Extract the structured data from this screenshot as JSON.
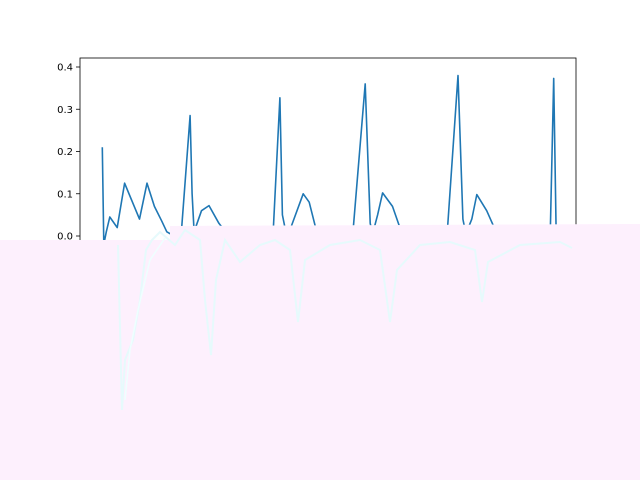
{
  "chart_data": {
    "type": "line",
    "title": "",
    "xlabel": "",
    "ylabel": "",
    "ylim": [
      -0.05,
      0.42
    ],
    "grid": false,
    "legend": "none",
    "y_ticks": [
      {
        "value": 0.4,
        "label": "0.4"
      },
      {
        "value": 0.3,
        "label": "0.3"
      },
      {
        "value": 0.2,
        "label": "0.2"
      },
      {
        "value": 0.1,
        "label": "0.1"
      },
      {
        "value": 0.0,
        "label": "0.0"
      }
    ],
    "series": [
      {
        "color": "#1f77b4",
        "x": [
          0.045,
          0.048,
          0.053,
          0.06,
          0.075,
          0.09,
          0.12,
          0.135,
          0.15,
          0.165,
          0.175,
          0.19,
          0.205,
          0.222,
          0.226,
          0.23,
          0.245,
          0.26,
          0.28,
          0.3,
          0.35,
          0.39,
          0.403,
          0.408,
          0.415,
          0.425,
          0.45,
          0.462,
          0.475,
          0.49,
          0.51,
          0.55,
          0.575,
          0.585,
          0.59,
          0.6,
          0.61,
          0.63,
          0.645,
          0.66,
          0.675,
          0.7,
          0.74,
          0.762,
          0.772,
          0.778,
          0.79,
          0.8,
          0.82,
          0.835,
          0.85,
          0.865,
          0.88,
          0.91,
          0.93,
          0.948,
          0.955,
          0.96
        ],
        "y": [
          0.21,
          -0.02,
          0.01,
          0.045,
          0.02,
          0.125,
          0.04,
          0.125,
          0.07,
          0.035,
          0.01,
          0.0,
          0.02,
          0.285,
          0.1,
          0.01,
          0.06,
          0.072,
          0.03,
          0.0,
          0.005,
          0.02,
          0.327,
          0.05,
          0.01,
          0.02,
          0.1,
          0.08,
          0.02,
          0.0,
          0.0,
          0.005,
          0.36,
          0.03,
          0.005,
          0.05,
          0.102,
          0.07,
          0.02,
          0.0,
          0.0,
          0.005,
          0.0,
          0.38,
          0.04,
          0.005,
          0.04,
          0.098,
          0.06,
          0.02,
          0.0,
          0.0,
          0.0,
          0.025,
          0.0,
          0.0,
          0.373,
          0.0
        ]
      }
    ]
  },
  "overlay": {
    "fill_color": "#fdf0fd",
    "stroke_color": "#e6fafc",
    "stroke_color_2": "#efffff"
  }
}
